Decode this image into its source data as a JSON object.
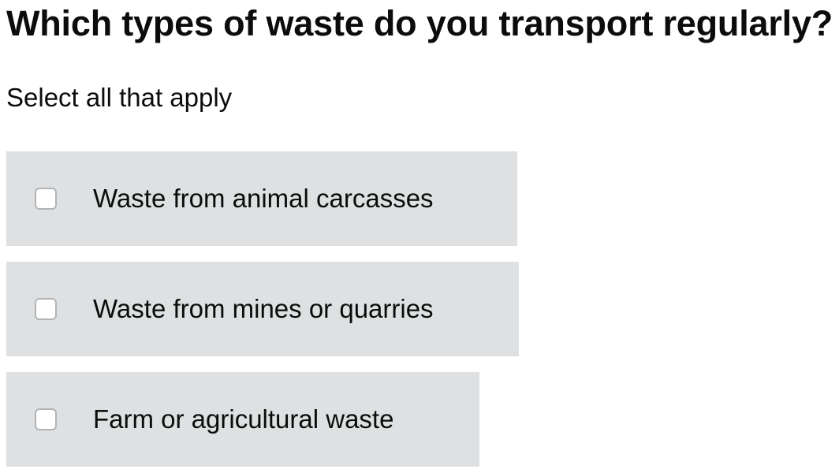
{
  "question": {
    "title": "Which types of waste do you transport regularly?",
    "hint": "Select all that apply"
  },
  "options": [
    {
      "label": "Waste from animal carcasses",
      "checked": false
    },
    {
      "label": "Waste from mines or quarries",
      "checked": false
    },
    {
      "label": "Farm or agricultural waste",
      "checked": false
    }
  ]
}
